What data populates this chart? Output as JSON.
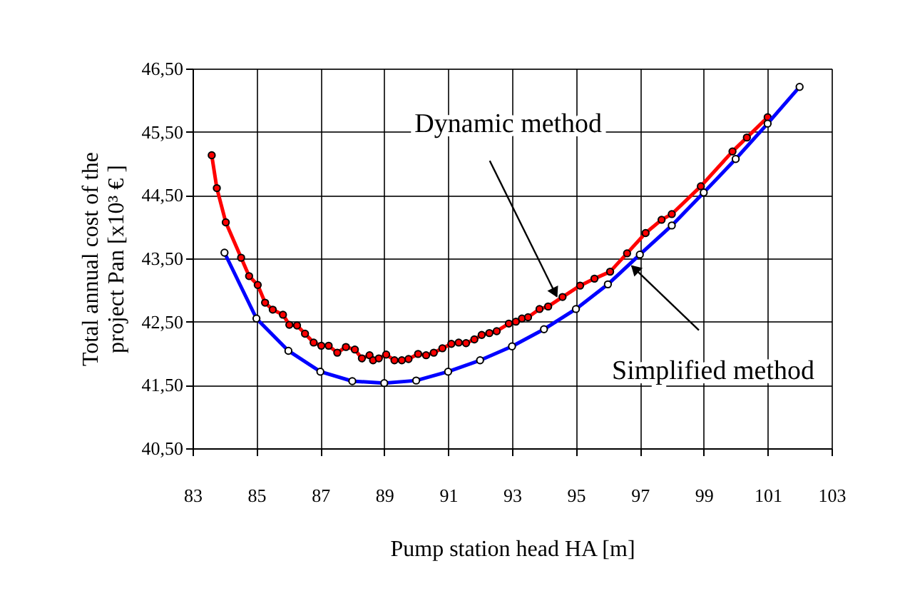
{
  "chart_data": {
    "type": "line",
    "xlabel": "Pump station head   HA   [m]",
    "ylabel": "Total annual cost of the\nproject    Pan [x10³ € ]",
    "xlim": [
      83,
      103
    ],
    "xticks": [
      83,
      85,
      87,
      89,
      91,
      93,
      95,
      97,
      99,
      101,
      103
    ],
    "ylim": [
      40.5,
      46.5
    ],
    "yticks": [
      {
        "value": 40.5,
        "label": "40,50"
      },
      {
        "value": 41.5,
        "label": "41,50"
      },
      {
        "value": 42.5,
        "label": "42,50"
      },
      {
        "value": 43.5,
        "label": "43,50"
      },
      {
        "value": 44.5,
        "label": "44,50"
      },
      {
        "value": 45.5,
        "label": "45,50"
      },
      {
        "value": 46.5,
        "label": "46,50"
      }
    ],
    "grid": true,
    "marker": "circle",
    "line_style": "solid",
    "series": [
      {
        "color": "#ff0000",
        "x": [
          83.6,
          83.76,
          84.04,
          84.52,
          84.77,
          85.04,
          85.27,
          85.51,
          85.83,
          86.03,
          86.27,
          86.52,
          86.79,
          87.03,
          87.26,
          87.53,
          87.8,
          88.08,
          88.3,
          88.54,
          88.65,
          88.83,
          89.06,
          89.32,
          89.55,
          89.76,
          90.06,
          90.31,
          90.55,
          90.82,
          91.1,
          91.33,
          91.56,
          91.82,
          92.05,
          92.29,
          92.52,
          92.9,
          93.12,
          93.31,
          93.5,
          93.86,
          94.13,
          94.58,
          95.13,
          95.58,
          96.07,
          96.6,
          97.18,
          97.68,
          98.0,
          98.91,
          99.9,
          100.35,
          101.0
        ],
        "values": [
          45.13,
          44.61,
          44.07,
          43.51,
          43.22,
          43.08,
          42.8,
          42.69,
          42.61,
          42.45,
          42.44,
          42.31,
          42.17,
          42.12,
          42.12,
          42.01,
          42.1,
          42.06,
          41.92,
          41.97,
          41.89,
          41.92,
          41.98,
          41.89,
          41.89,
          41.91,
          41.99,
          41.97,
          42.01,
          42.08,
          42.15,
          42.17,
          42.16,
          42.22,
          42.29,
          42.32,
          42.35,
          42.47,
          42.5,
          42.55,
          42.57,
          42.7,
          42.74,
          42.89,
          43.07,
          43.18,
          43.29,
          43.58,
          43.9,
          44.11,
          44.2,
          44.64,
          45.19,
          45.41,
          45.73
        ]
      },
      {
        "color": "#0000ff",
        "x": [
          84,
          85,
          86,
          87,
          88,
          89,
          90,
          91,
          92,
          93,
          94,
          95,
          96,
          97,
          98,
          99,
          100,
          101,
          102
        ],
        "values": [
          43.59,
          42.55,
          42.04,
          41.71,
          41.56,
          41.53,
          41.57,
          41.71,
          41.89,
          42.11,
          42.38,
          42.7,
          43.09,
          43.56,
          44.02,
          44.54,
          45.07,
          45.63,
          46.21
        ]
      }
    ],
    "annotations": [
      {
        "text": "Dynamic method",
        "x": 94.4,
        "y": 42.9
      },
      {
        "text": "Simplified method",
        "x": 96.75,
        "y": 43.38
      }
    ]
  }
}
